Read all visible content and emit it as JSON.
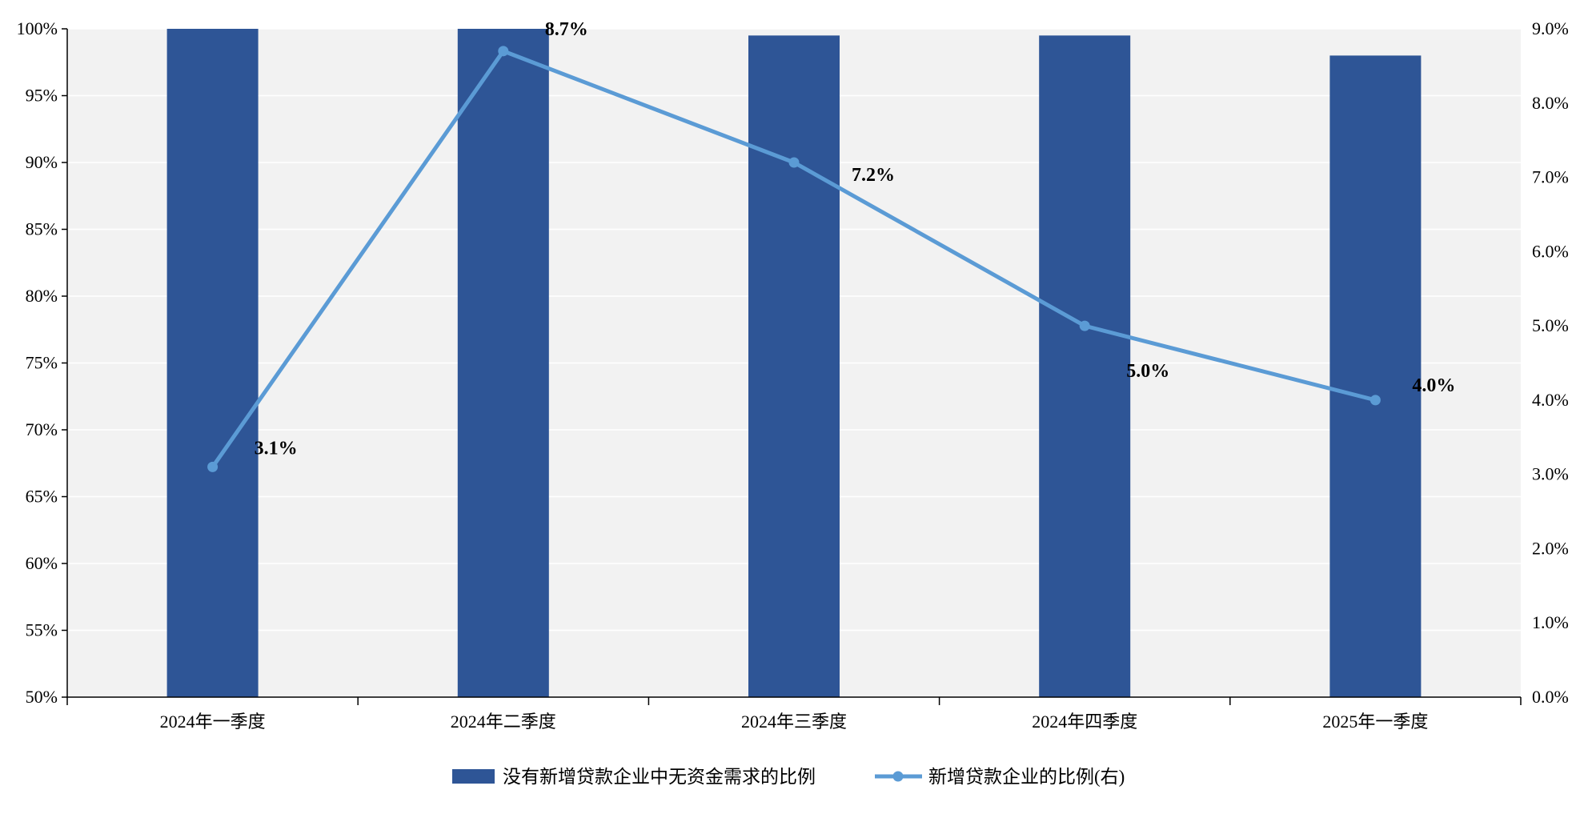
{
  "chart_data": {
    "type": "bar",
    "title": "",
    "categories": [
      "2024年一季度",
      "2024年二季度",
      "2024年三季度",
      "2024年四季度",
      "2025年一季度"
    ],
    "series": [
      {
        "name": "没有新增贷款企业中无资金需求的比例",
        "type": "bar",
        "axis": "left",
        "values": [
          100,
          100,
          99.5,
          99.5,
          98
        ],
        "color": "#2E5596"
      },
      {
        "name": "新增贷款企业的比例(右)",
        "type": "line",
        "axis": "right",
        "values": [
          3.1,
          8.7,
          7.2,
          5.0,
          4.0
        ],
        "data_labels": [
          "3.1%",
          "8.7%",
          "7.2%",
          "5.0%",
          "4.0%"
        ],
        "color": "#5B9BD5"
      }
    ],
    "y_left": {
      "ylim": [
        50,
        100
      ],
      "ticks": [
        50,
        55,
        60,
        65,
        70,
        75,
        80,
        85,
        90,
        95,
        100
      ],
      "tick_labels": [
        "50%",
        "55%",
        "60%",
        "65%",
        "70%",
        "75%",
        "80%",
        "85%",
        "90%",
        "95%",
        "100%"
      ]
    },
    "y_right": {
      "ylim": [
        0,
        9
      ],
      "ticks": [
        0,
        1,
        2,
        3,
        4,
        5,
        6,
        7,
        8,
        9
      ],
      "tick_labels": [
        "0.0%",
        "1.0%",
        "2.0%",
        "3.0%",
        "4.0%",
        "5.0%",
        "6.0%",
        "7.0%",
        "8.0%",
        "9.0%"
      ]
    },
    "grid": true,
    "plot_background": "#F2F2F2",
    "legend_position": "bottom"
  }
}
